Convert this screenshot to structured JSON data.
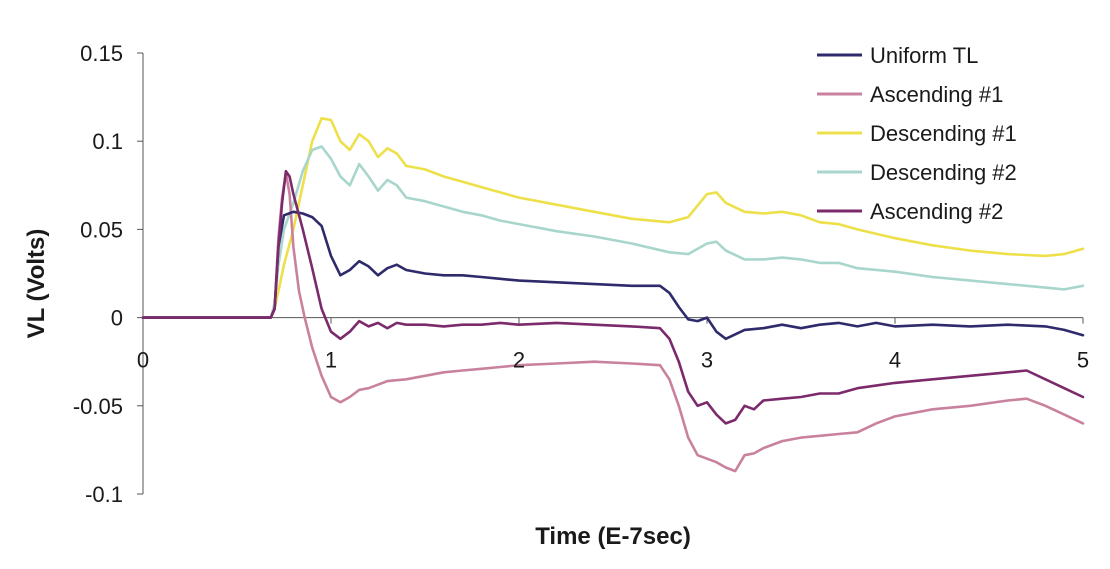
{
  "chart_data": {
    "type": "line",
    "title": "",
    "xlabel": "Time (E-7sec)",
    "ylabel": "VL (Volts)",
    "xlim": [
      0,
      5
    ],
    "ylim": [
      -0.1,
      0.15
    ],
    "x_ticks": [
      0,
      1,
      2,
      3,
      4,
      5
    ],
    "x_tick_labels": [
      "0",
      "1",
      "2",
      "3",
      "4",
      "5"
    ],
    "y_ticks": [
      0.15,
      0.1,
      0.05,
      0,
      -0.05,
      -0.1
    ],
    "y_tick_labels": [
      "0.15",
      "0.1",
      "0.05",
      "0",
      "-0.05",
      "-0.1"
    ],
    "grid": false,
    "legend_position": "top-right",
    "series": [
      {
        "name": "Uniform TL",
        "color": "#2e2a6b",
        "points": [
          [
            0,
            0
          ],
          [
            0.68,
            0
          ],
          [
            0.7,
            0.005
          ],
          [
            0.72,
            0.04
          ],
          [
            0.75,
            0.058
          ],
          [
            0.8,
            0.06
          ],
          [
            0.85,
            0.059
          ],
          [
            0.9,
            0.057
          ],
          [
            0.95,
            0.052
          ],
          [
            1.0,
            0.035
          ],
          [
            1.05,
            0.024
          ],
          [
            1.1,
            0.027
          ],
          [
            1.15,
            0.032
          ],
          [
            1.2,
            0.029
          ],
          [
            1.25,
            0.024
          ],
          [
            1.3,
            0.028
          ],
          [
            1.35,
            0.03
          ],
          [
            1.4,
            0.027
          ],
          [
            1.5,
            0.025
          ],
          [
            1.6,
            0.024
          ],
          [
            1.7,
            0.024
          ],
          [
            1.8,
            0.023
          ],
          [
            1.9,
            0.022
          ],
          [
            2.0,
            0.021
          ],
          [
            2.2,
            0.02
          ],
          [
            2.4,
            0.019
          ],
          [
            2.6,
            0.018
          ],
          [
            2.75,
            0.018
          ],
          [
            2.8,
            0.014
          ],
          [
            2.85,
            0.006
          ],
          [
            2.9,
            -0.001
          ],
          [
            2.95,
            -0.002
          ],
          [
            3.0,
            0.0
          ],
          [
            3.05,
            -0.008
          ],
          [
            3.1,
            -0.012
          ],
          [
            3.2,
            -0.007
          ],
          [
            3.3,
            -0.006
          ],
          [
            3.4,
            -0.004
          ],
          [
            3.5,
            -0.006
          ],
          [
            3.6,
            -0.004
          ],
          [
            3.7,
            -0.003
          ],
          [
            3.8,
            -0.005
          ],
          [
            3.9,
            -0.003
          ],
          [
            4.0,
            -0.005
          ],
          [
            4.2,
            -0.004
          ],
          [
            4.4,
            -0.005
          ],
          [
            4.6,
            -0.004
          ],
          [
            4.8,
            -0.005
          ],
          [
            4.9,
            -0.007
          ],
          [
            5.0,
            -0.01
          ]
        ]
      },
      {
        "name": "Ascending #1",
        "color": "#c9829e",
        "points": [
          [
            0,
            0
          ],
          [
            0.68,
            0
          ],
          [
            0.7,
            0.005
          ],
          [
            0.72,
            0.045
          ],
          [
            0.74,
            0.068
          ],
          [
            0.76,
            0.082
          ],
          [
            0.78,
            0.07
          ],
          [
            0.8,
            0.04
          ],
          [
            0.83,
            0.015
          ],
          [
            0.86,
            0.0
          ],
          [
            0.9,
            -0.017
          ],
          [
            0.95,
            -0.033
          ],
          [
            1.0,
            -0.045
          ],
          [
            1.05,
            -0.048
          ],
          [
            1.1,
            -0.045
          ],
          [
            1.15,
            -0.041
          ],
          [
            1.2,
            -0.04
          ],
          [
            1.3,
            -0.036
          ],
          [
            1.4,
            -0.035
          ],
          [
            1.5,
            -0.033
          ],
          [
            1.6,
            -0.031
          ],
          [
            1.7,
            -0.03
          ],
          [
            1.8,
            -0.029
          ],
          [
            1.9,
            -0.028
          ],
          [
            2.0,
            -0.027
          ],
          [
            2.2,
            -0.026
          ],
          [
            2.4,
            -0.025
          ],
          [
            2.6,
            -0.026
          ],
          [
            2.75,
            -0.027
          ],
          [
            2.8,
            -0.035
          ],
          [
            2.85,
            -0.05
          ],
          [
            2.9,
            -0.068
          ],
          [
            2.95,
            -0.078
          ],
          [
            3.0,
            -0.08
          ],
          [
            3.05,
            -0.082
          ],
          [
            3.1,
            -0.085
          ],
          [
            3.15,
            -0.087
          ],
          [
            3.2,
            -0.078
          ],
          [
            3.25,
            -0.077
          ],
          [
            3.3,
            -0.074
          ],
          [
            3.4,
            -0.07
          ],
          [
            3.5,
            -0.068
          ],
          [
            3.6,
            -0.067
          ],
          [
            3.7,
            -0.066
          ],
          [
            3.8,
            -0.065
          ],
          [
            3.9,
            -0.06
          ],
          [
            4.0,
            -0.056
          ],
          [
            4.2,
            -0.052
          ],
          [
            4.4,
            -0.05
          ],
          [
            4.6,
            -0.047
          ],
          [
            4.7,
            -0.046
          ],
          [
            4.8,
            -0.05
          ],
          [
            4.9,
            -0.055
          ],
          [
            5.0,
            -0.06
          ]
        ]
      },
      {
        "name": "Descending #1",
        "color": "#ede04a",
        "points": [
          [
            0,
            0
          ],
          [
            0.68,
            0
          ],
          [
            0.7,
            0.005
          ],
          [
            0.72,
            0.015
          ],
          [
            0.75,
            0.03
          ],
          [
            0.8,
            0.05
          ],
          [
            0.85,
            0.075
          ],
          [
            0.9,
            0.1
          ],
          [
            0.95,
            0.113
          ],
          [
            1.0,
            0.112
          ],
          [
            1.05,
            0.1
          ],
          [
            1.1,
            0.095
          ],
          [
            1.15,
            0.104
          ],
          [
            1.2,
            0.1
          ],
          [
            1.25,
            0.091
          ],
          [
            1.3,
            0.096
          ],
          [
            1.35,
            0.093
          ],
          [
            1.4,
            0.086
          ],
          [
            1.5,
            0.084
          ],
          [
            1.6,
            0.08
          ],
          [
            1.7,
            0.077
          ],
          [
            1.8,
            0.074
          ],
          [
            1.9,
            0.071
          ],
          [
            2.0,
            0.068
          ],
          [
            2.2,
            0.064
          ],
          [
            2.4,
            0.06
          ],
          [
            2.6,
            0.056
          ],
          [
            2.8,
            0.054
          ],
          [
            2.9,
            0.057
          ],
          [
            3.0,
            0.07
          ],
          [
            3.05,
            0.071
          ],
          [
            3.1,
            0.065
          ],
          [
            3.2,
            0.06
          ],
          [
            3.3,
            0.059
          ],
          [
            3.4,
            0.06
          ],
          [
            3.5,
            0.058
          ],
          [
            3.6,
            0.054
          ],
          [
            3.7,
            0.053
          ],
          [
            3.8,
            0.05
          ],
          [
            4.0,
            0.045
          ],
          [
            4.2,
            0.041
          ],
          [
            4.4,
            0.038
          ],
          [
            4.6,
            0.036
          ],
          [
            4.8,
            0.035
          ],
          [
            4.9,
            0.036
          ],
          [
            5.0,
            0.039
          ]
        ]
      },
      {
        "name": "Descending #2",
        "color": "#a9d6cc",
        "points": [
          [
            0,
            0
          ],
          [
            0.68,
            0
          ],
          [
            0.7,
            0.008
          ],
          [
            0.72,
            0.03
          ],
          [
            0.75,
            0.05
          ],
          [
            0.8,
            0.065
          ],
          [
            0.85,
            0.083
          ],
          [
            0.9,
            0.095
          ],
          [
            0.95,
            0.097
          ],
          [
            1.0,
            0.09
          ],
          [
            1.05,
            0.08
          ],
          [
            1.1,
            0.075
          ],
          [
            1.15,
            0.087
          ],
          [
            1.2,
            0.08
          ],
          [
            1.25,
            0.072
          ],
          [
            1.3,
            0.078
          ],
          [
            1.35,
            0.075
          ],
          [
            1.4,
            0.068
          ],
          [
            1.5,
            0.066
          ],
          [
            1.6,
            0.063
          ],
          [
            1.7,
            0.06
          ],
          [
            1.8,
            0.058
          ],
          [
            1.9,
            0.055
          ],
          [
            2.0,
            0.053
          ],
          [
            2.2,
            0.049
          ],
          [
            2.4,
            0.046
          ],
          [
            2.6,
            0.042
          ],
          [
            2.8,
            0.037
          ],
          [
            2.9,
            0.036
          ],
          [
            3.0,
            0.042
          ],
          [
            3.05,
            0.043
          ],
          [
            3.1,
            0.038
          ],
          [
            3.2,
            0.033
          ],
          [
            3.3,
            0.033
          ],
          [
            3.4,
            0.034
          ],
          [
            3.5,
            0.033
          ],
          [
            3.6,
            0.031
          ],
          [
            3.7,
            0.031
          ],
          [
            3.8,
            0.028
          ],
          [
            4.0,
            0.026
          ],
          [
            4.2,
            0.023
          ],
          [
            4.4,
            0.021
          ],
          [
            4.6,
            0.019
          ],
          [
            4.8,
            0.017
          ],
          [
            4.9,
            0.016
          ],
          [
            5.0,
            0.018
          ]
        ]
      },
      {
        "name": "Ascending #2",
        "color": "#7b2a6b",
        "points": [
          [
            0,
            0
          ],
          [
            0.68,
            0
          ],
          [
            0.7,
            0.005
          ],
          [
            0.72,
            0.04
          ],
          [
            0.74,
            0.065
          ],
          [
            0.76,
            0.083
          ],
          [
            0.78,
            0.08
          ],
          [
            0.8,
            0.07
          ],
          [
            0.85,
            0.05
          ],
          [
            0.9,
            0.028
          ],
          [
            0.95,
            0.005
          ],
          [
            1.0,
            -0.008
          ],
          [
            1.05,
            -0.012
          ],
          [
            1.1,
            -0.008
          ],
          [
            1.15,
            -0.002
          ],
          [
            1.2,
            -0.005
          ],
          [
            1.25,
            -0.003
          ],
          [
            1.3,
            -0.006
          ],
          [
            1.35,
            -0.003
          ],
          [
            1.4,
            -0.004
          ],
          [
            1.5,
            -0.004
          ],
          [
            1.6,
            -0.005
          ],
          [
            1.7,
            -0.004
          ],
          [
            1.8,
            -0.004
          ],
          [
            1.9,
            -0.003
          ],
          [
            2.0,
            -0.004
          ],
          [
            2.2,
            -0.003
          ],
          [
            2.4,
            -0.004
          ],
          [
            2.6,
            -0.005
          ],
          [
            2.75,
            -0.006
          ],
          [
            2.8,
            -0.012
          ],
          [
            2.85,
            -0.025
          ],
          [
            2.9,
            -0.042
          ],
          [
            2.95,
            -0.05
          ],
          [
            3.0,
            -0.048
          ],
          [
            3.05,
            -0.055
          ],
          [
            3.1,
            -0.06
          ],
          [
            3.15,
            -0.058
          ],
          [
            3.2,
            -0.05
          ],
          [
            3.25,
            -0.052
          ],
          [
            3.3,
            -0.047
          ],
          [
            3.4,
            -0.046
          ],
          [
            3.5,
            -0.045
          ],
          [
            3.6,
            -0.043
          ],
          [
            3.7,
            -0.043
          ],
          [
            3.8,
            -0.04
          ],
          [
            4.0,
            -0.037
          ],
          [
            4.2,
            -0.035
          ],
          [
            4.4,
            -0.033
          ],
          [
            4.6,
            -0.031
          ],
          [
            4.7,
            -0.03
          ],
          [
            4.8,
            -0.035
          ],
          [
            4.9,
            -0.04
          ],
          [
            5.0,
            -0.045
          ]
        ]
      }
    ]
  }
}
